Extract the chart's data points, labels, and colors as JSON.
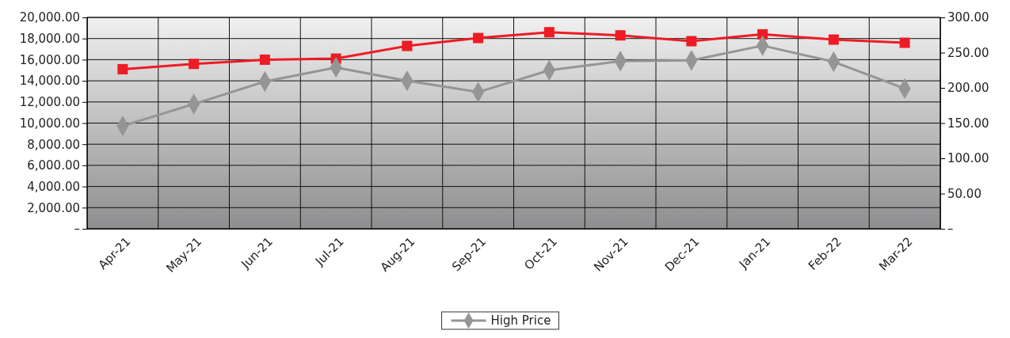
{
  "chart_data": {
    "type": "line",
    "categories": [
      "Apr-21",
      "May-21",
      "Jun-21",
      "Jul-21",
      "Aug-21",
      "Sep-21",
      "Oct-21",
      "Nov-21",
      "Dec-21",
      "Jan-21",
      "Feb-22",
      "Mar-22"
    ],
    "series": [
      {
        "color": "#ed1c24",
        "marker": "square",
        "values": [
          15100,
          15600,
          16000,
          16100,
          17300,
          18050,
          18600,
          18300,
          17750,
          18400,
          17900,
          17600
        ]
      },
      {
        "name": "High Price",
        "color": "#959595",
        "marker": "diamond",
        "axis": "y2",
        "values": [
          146,
          177,
          209,
          229,
          210,
          194,
          225,
          238,
          239,
          260,
          237,
          199
        ]
      }
    ],
    "ylim": [
      0,
      20000
    ],
    "yticks": [
      {
        "value": 0,
        "label": "–"
      },
      {
        "value": 2000,
        "label": "2,000.00"
      },
      {
        "value": 4000,
        "label": "4,000.00"
      },
      {
        "value": 6000,
        "label": "6,000.00"
      },
      {
        "value": 8000,
        "label": "8,000.00"
      },
      {
        "value": 10000,
        "label": "10,000.00"
      },
      {
        "value": 12000,
        "label": "12,000.00"
      },
      {
        "value": 14000,
        "label": "14,000.00"
      },
      {
        "value": 16000,
        "label": "16,000.00"
      },
      {
        "value": 18000,
        "label": "18,000.00"
      },
      {
        "value": 20000,
        "label": "20,000.00"
      }
    ],
    "y2lim": [
      0,
      300
    ],
    "y2ticks": [
      {
        "value": 0,
        "label": "–"
      },
      {
        "value": 50,
        "label": "50.00"
      },
      {
        "value": 100,
        "label": "100.00"
      },
      {
        "value": 150,
        "label": "150.00"
      },
      {
        "value": 200,
        "label": "200.00"
      },
      {
        "value": 250,
        "label": "250.00"
      },
      {
        "value": 300,
        "label": "300.00"
      }
    ],
    "grid": true,
    "legend": "bottom",
    "line_style": "solid"
  }
}
